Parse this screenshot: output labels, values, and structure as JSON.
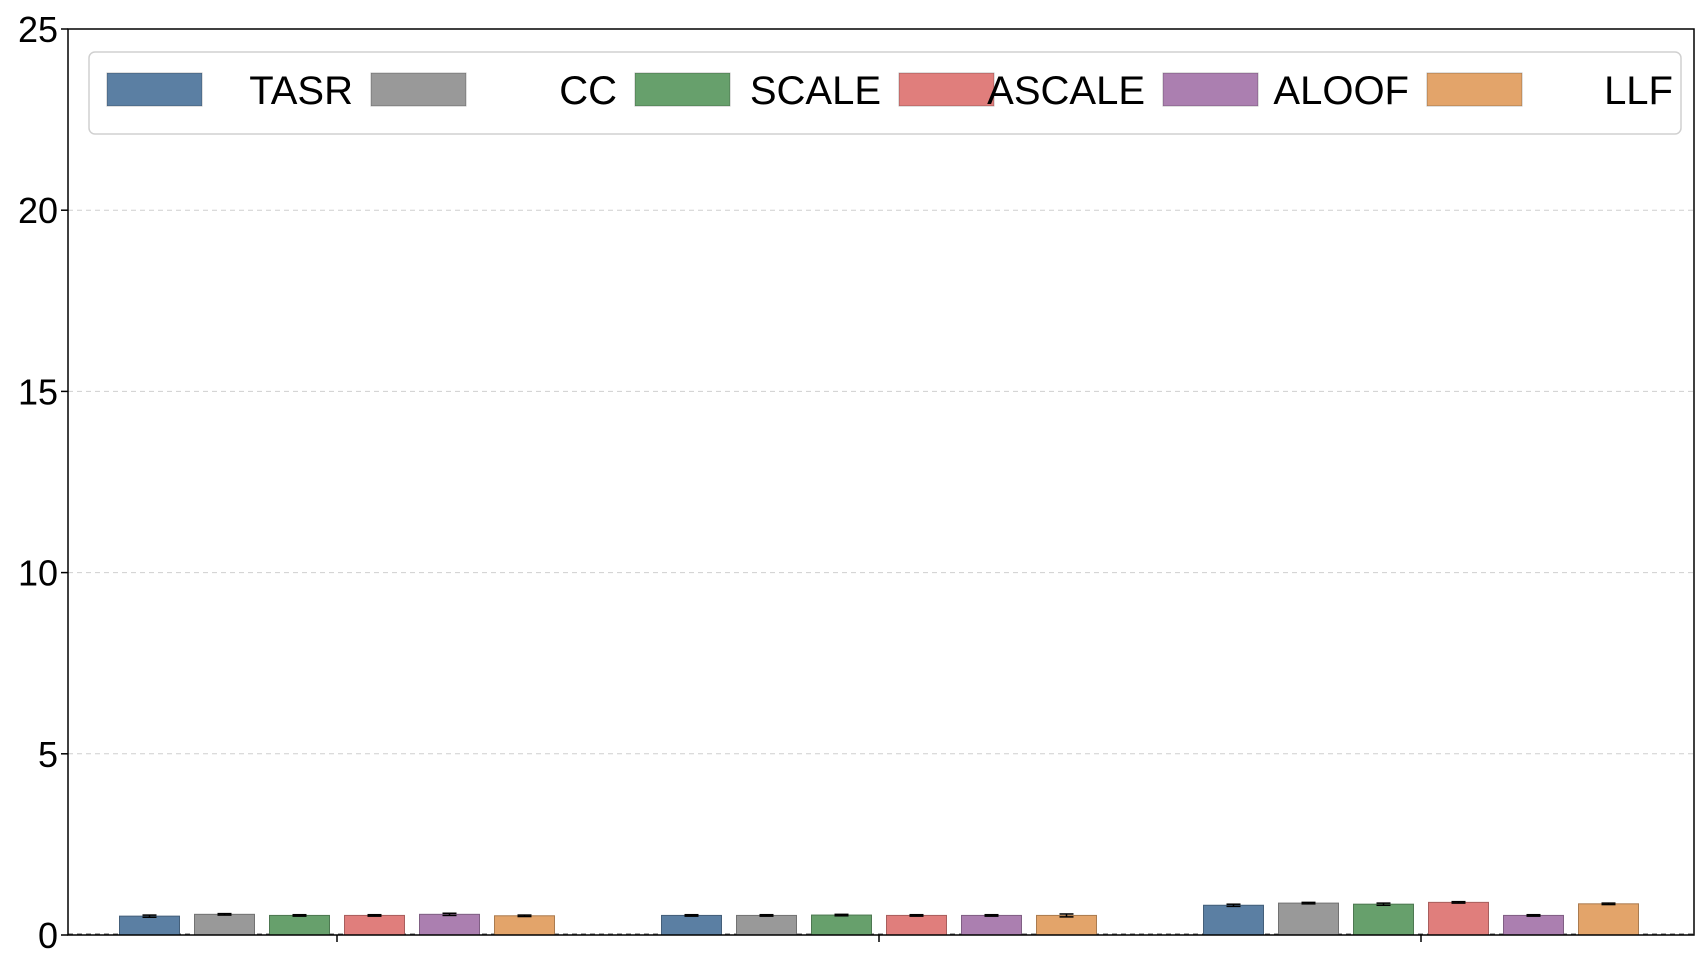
{
  "chart_data": {
    "type": "bar",
    "title": "",
    "xlabel": "",
    "ylabel": "",
    "ylim": [
      0,
      25
    ],
    "yticks": [
      0,
      5,
      10,
      15,
      20,
      25
    ],
    "grid": "horizontal dashed",
    "legend_placement": "top",
    "categories": [
      "",
      "",
      ""
    ],
    "series": [
      {
        "name": "TASR",
        "color": "#5b7fa3",
        "values": [
          0.52,
          0.54,
          0.82
        ],
        "errors": [
          0.03,
          0.02,
          0.03
        ]
      },
      {
        "name": "CC",
        "color": "#999999",
        "values": [
          0.57,
          0.54,
          0.88
        ],
        "errors": [
          0.02,
          0.02,
          0.02
        ]
      },
      {
        "name": "SCALE",
        "color": "#67a06c",
        "values": [
          0.54,
          0.55,
          0.85
        ],
        "errors": [
          0.02,
          0.02,
          0.03
        ]
      },
      {
        "name": "ASCALE",
        "color": "#e07e7c",
        "values": [
          0.54,
          0.54,
          0.9
        ],
        "errors": [
          0.02,
          0.02,
          0.02
        ]
      },
      {
        "name": "ALOOF",
        "color": "#ab7fb0",
        "values": [
          0.57,
          0.54,
          0.54
        ],
        "errors": [
          0.03,
          0.02,
          0.02
        ]
      },
      {
        "name": "LLF",
        "color": "#e3a46a",
        "values": [
          0.53,
          0.54,
          0.86
        ],
        "errors": [
          0.02,
          0.04,
          0.02
        ]
      }
    ]
  }
}
